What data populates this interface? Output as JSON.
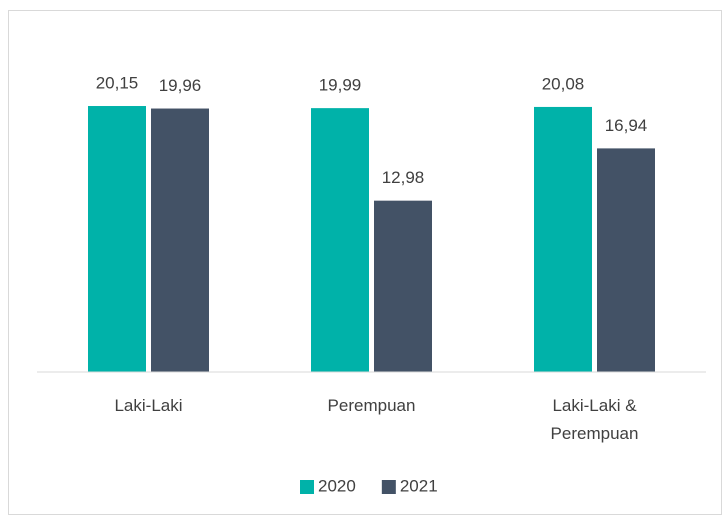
{
  "chart_data": {
    "type": "bar",
    "categories": [
      "Laki-Laki",
      "Perempuan",
      "Laki-Laki & Perempuan"
    ],
    "series": [
      {
        "name": "2020",
        "color": "#00b2a9",
        "values": [
          20.15,
          19.99,
          20.08
        ],
        "value_labels": [
          "20,15",
          "19,99",
          "20,08"
        ]
      },
      {
        "name": "2021",
        "color": "#435266",
        "values": [
          19.96,
          12.98,
          16.94
        ],
        "value_labels": [
          "19,96",
          "12,98",
          "16,94"
        ]
      }
    ],
    "ylim": [
      0,
      25
    ],
    "legend": "bottom"
  }
}
